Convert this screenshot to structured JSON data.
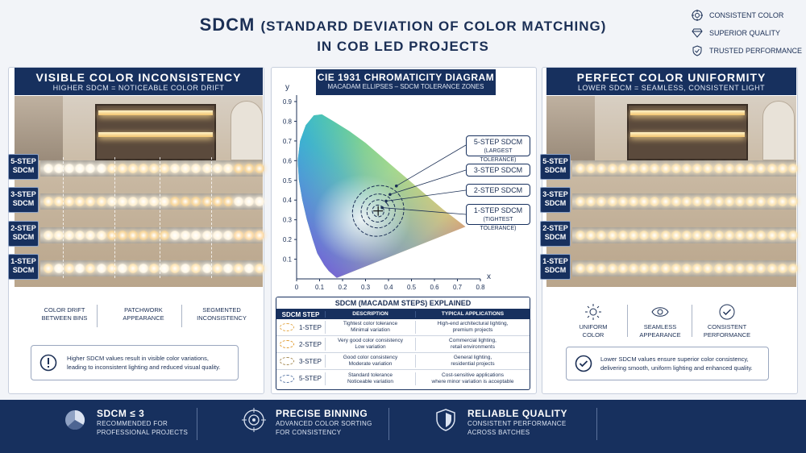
{
  "header": {
    "title_main": "SDCM",
    "title_paren": "(STANDARD DEVIATION OF COLOR MATCHING)",
    "title_line2": "IN COB LED PROJECTS",
    "badges": [
      {
        "icon": "target-icon",
        "label": "CONSISTENT COLOR"
      },
      {
        "icon": "diamond-icon",
        "label": "SUPERIOR QUALITY"
      },
      {
        "icon": "shield-check-icon",
        "label": "TRUSTED PERFORMANCE"
      }
    ]
  },
  "left_panel": {
    "title": "VISIBLE COLOR INCONSISTENCY",
    "subtitle": "HIGHER SDCM = NOTICEABLE COLOR DRIFT",
    "steps": [
      {
        "top": "5-STEP",
        "bottom": "SDCM"
      },
      {
        "top": "3-STEP",
        "bottom": "SDCM"
      },
      {
        "top": "2-STEP",
        "bottom": "SDCM"
      },
      {
        "top": "1-STEP",
        "bottom": "SDCM"
      }
    ],
    "features": [
      {
        "l1": "COLOR DRIFT",
        "l2": "BETWEEN BINS"
      },
      {
        "l1": "PATCHWORK",
        "l2": "APPEARANCE"
      },
      {
        "l1": "SEGMENTED",
        "l2": "INCONSISTENCY"
      }
    ],
    "note_l1": "Higher SDCM values result in visible color variations,",
    "note_l2": "leading to inconsistent lighting and reduced visual quality."
  },
  "right_panel": {
    "title": "PERFECT COLOR UNIFORMITY",
    "subtitle": "LOWER SDCM = SEAMLESS, CONSISTENT LIGHT",
    "steps": [
      {
        "top": "5-STEP",
        "bottom": "SDCM"
      },
      {
        "top": "3-STEP",
        "bottom": "SDCM"
      },
      {
        "top": "2-STEP",
        "bottom": "SDCM"
      },
      {
        "top": "1-STEP",
        "bottom": "SDCM"
      }
    ],
    "features": [
      {
        "icon": "sun-icon",
        "l1": "UNIFORM",
        "l2": "COLOR"
      },
      {
        "icon": "eye-icon",
        "l1": "SEAMLESS",
        "l2": "APPEARANCE"
      },
      {
        "icon": "check-circle-icon",
        "l1": "CONSISTENT",
        "l2": "PERFORMANCE"
      }
    ],
    "note_l1": "Lower SDCM values ensure superior color consistency,",
    "note_l2": "delivering smooth, uniform lighting and enhanced quality."
  },
  "chart_data": {
    "type": "scatter",
    "title": "CIE 1931 CHROMATICITY DIAGRAM",
    "subtitle": "MACADAM ELLIPSES – SDCM TOLERANCE ZONES",
    "xlabel": "x",
    "ylabel": "y",
    "xlim": [
      0,
      0.8
    ],
    "ylim": [
      0,
      0.9
    ],
    "x_ticks": [
      "0",
      "0.1",
      "0.2",
      "0.3",
      "0.4",
      "0.5",
      "0.6",
      "0.7",
      "0.8"
    ],
    "y_ticks": [
      "0.1",
      "0.2",
      "0.3",
      "0.4",
      "0.5",
      "0.6",
      "0.7",
      "0.8",
      "0.9"
    ],
    "locus": [
      [
        0.175,
        0.005
      ],
      [
        0.17,
        0.01
      ],
      [
        0.16,
        0.02
      ],
      [
        0.14,
        0.04
      ],
      [
        0.12,
        0.07
      ],
      [
        0.09,
        0.13
      ],
      [
        0.07,
        0.2
      ],
      [
        0.045,
        0.3
      ],
      [
        0.025,
        0.4
      ],
      [
        0.01,
        0.5
      ],
      [
        0.005,
        0.6
      ],
      [
        0.015,
        0.7
      ],
      [
        0.04,
        0.78
      ],
      [
        0.075,
        0.83
      ],
      [
        0.11,
        0.835
      ],
      [
        0.16,
        0.8
      ],
      [
        0.23,
        0.75
      ],
      [
        0.3,
        0.69
      ],
      [
        0.37,
        0.62
      ],
      [
        0.44,
        0.55
      ],
      [
        0.5,
        0.49
      ],
      [
        0.57,
        0.42
      ],
      [
        0.64,
        0.35
      ],
      [
        0.735,
        0.265
      ]
    ],
    "center": {
      "x": 0.355,
      "y": 0.345
    },
    "ellipses": [
      {
        "name": "1-STEP SDCM",
        "note": "(TIGHTEST TOLERANCE)",
        "rx": 0.025,
        "ry": 0.03
      },
      {
        "name": "2-STEP SDCM",
        "rx": 0.05,
        "ry": 0.055
      },
      {
        "name": "3-STEP SDCM",
        "rx": 0.075,
        "ry": 0.085
      },
      {
        "name": "5-STEP SDCM",
        "note": "(LARGEST TOLERANCE)",
        "rx": 0.115,
        "ry": 0.125
      }
    ]
  },
  "table": {
    "title": "SDCM (MACADAM STEPS) EXPLAINED",
    "headers": [
      "SDCM STEP",
      "DESCRIPTION",
      "TYPICAL APPLICATIONS"
    ],
    "rows": [
      {
        "step": "1-STEP",
        "color": "#e3a84a",
        "d1": "Tightest color tolerance",
        "d2": "Minimal variation",
        "a1": "High-end architectural lighting,",
        "a2": "premium projects"
      },
      {
        "step": "2-STEP",
        "color": "#e09a2e",
        "d1": "Very good color consistency",
        "d2": "Low variation",
        "a1": "Commercial lighting,",
        "a2": "retail environments"
      },
      {
        "step": "3-STEP",
        "color": "#a58a55",
        "d1": "Good color consistency",
        "d2": "Moderate variation",
        "a1": "General lighting,",
        "a2": "residential projects"
      },
      {
        "step": "5-STEP",
        "color": "#5a77a6",
        "d1": "Standard tolerance",
        "d2": "Noticeable variation",
        "a1": "Cost-sensitive applications",
        "a2": "where minor variation is acceptable"
      }
    ]
  },
  "footer": [
    {
      "icon": "pie-chart-icon",
      "title": "SDCM ≤ 3",
      "l1": "RECOMMENDED FOR",
      "l2": "PROFESSIONAL PROJECTS"
    },
    {
      "icon": "crosshair-icon",
      "title": "PRECISE BINNING",
      "l1": "ADVANCED COLOR SORTING",
      "l2": "FOR CONSISTENCY"
    },
    {
      "icon": "shield-icon",
      "title": "RELIABLE QUALITY",
      "l1": "CONSISTENT PERFORMANCE",
      "l2": "ACROSS BATCHES"
    }
  ]
}
